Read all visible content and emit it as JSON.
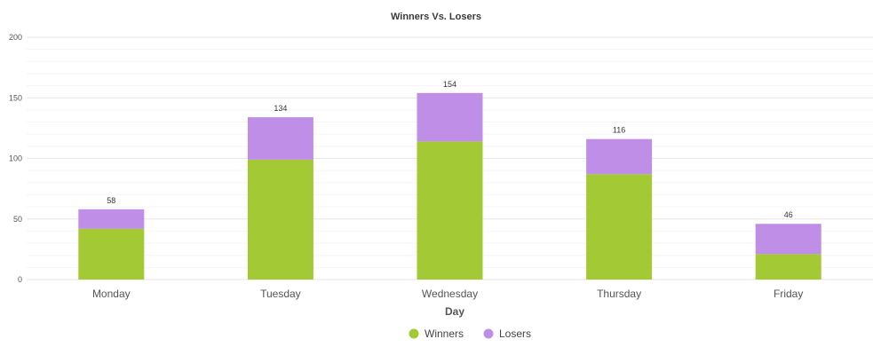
{
  "chart_data": {
    "type": "bar",
    "stacked": true,
    "title": "Winners Vs. Losers",
    "xlabel": "Day",
    "ylabel": "",
    "categories": [
      "Monday",
      "Tuesday",
      "Wednesday",
      "Thursday",
      "Friday"
    ],
    "series": [
      {
        "name": "Winners",
        "color": "#a3c934",
        "values": [
          42,
          99,
          114,
          87,
          21
        ]
      },
      {
        "name": "Losers",
        "color": "#bf8ee6",
        "values": [
          16,
          35,
          40,
          29,
          25
        ]
      }
    ],
    "totals": [
      58,
      134,
      154,
      116,
      46
    ],
    "ylim": [
      0,
      200
    ],
    "yticks": [
      0,
      50,
      100,
      150,
      200
    ],
    "grid": true,
    "legend_position": "bottom"
  }
}
